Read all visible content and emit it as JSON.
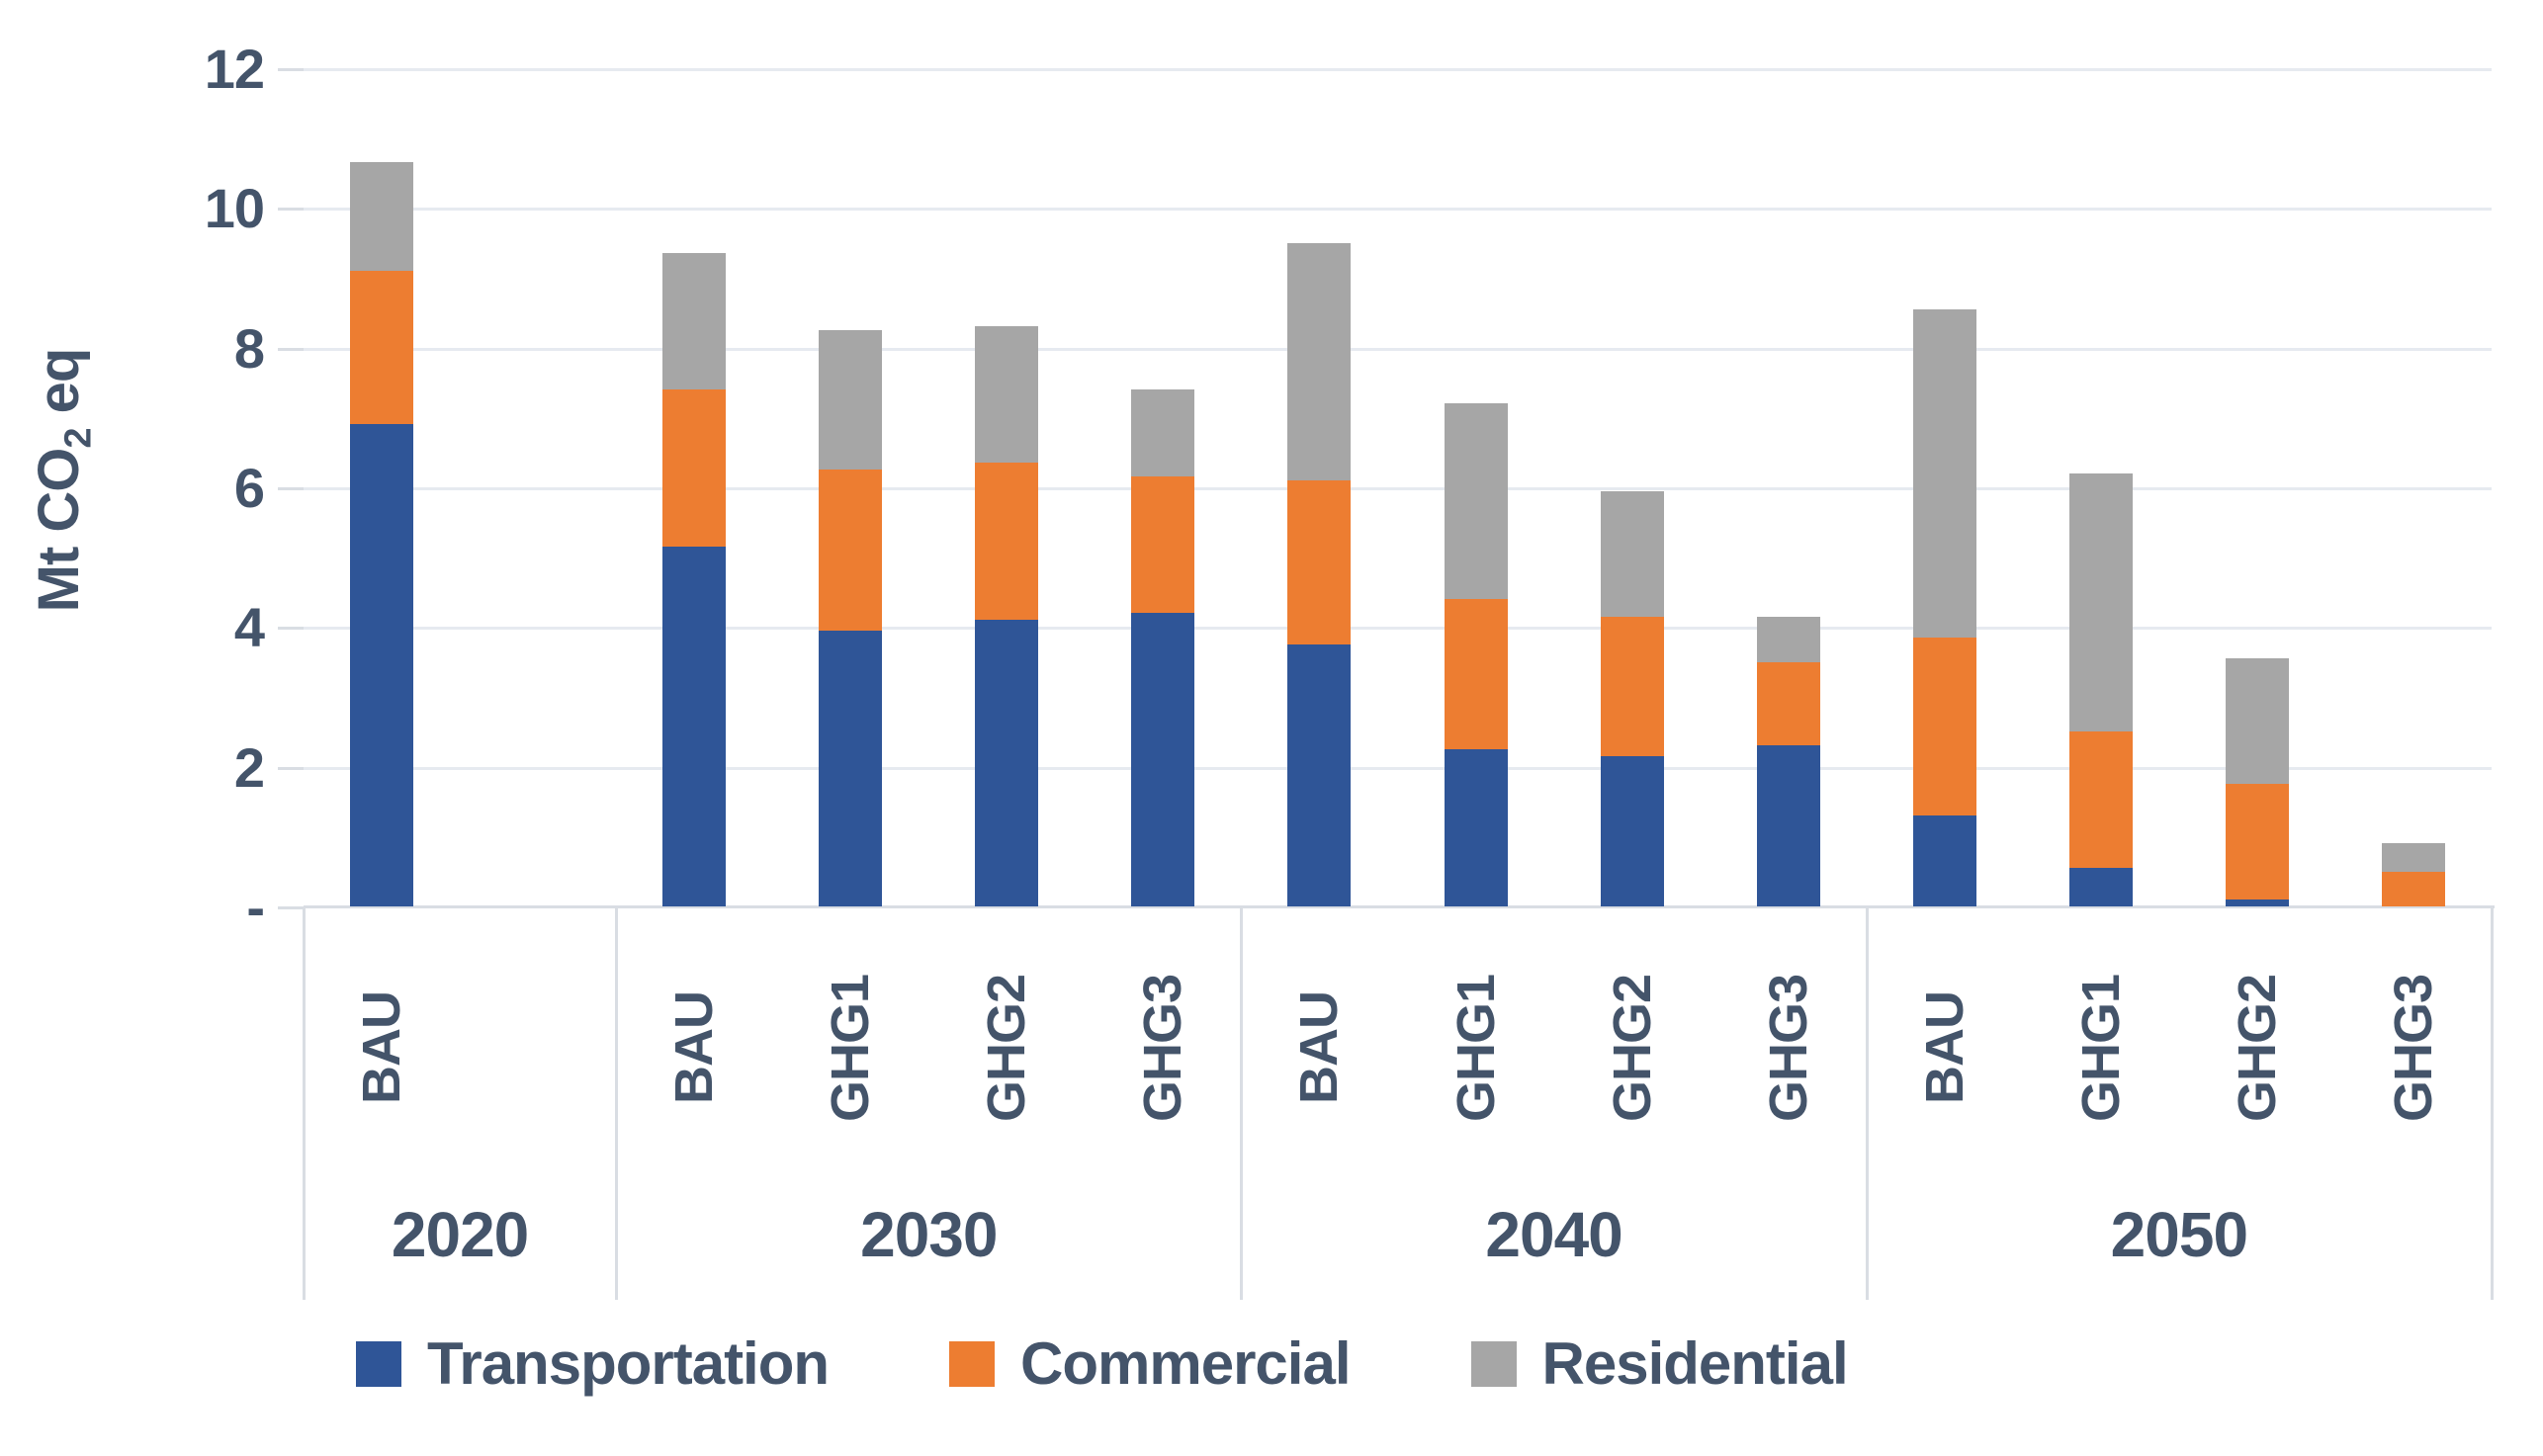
{
  "chart_data": {
    "type": "bar",
    "stacked": true,
    "title": "",
    "ylabel": "Mt CO2 eq",
    "ylabel_parts": {
      "prefix": "Mt CO",
      "sub": "2",
      "suffix": " eq"
    },
    "ylim": [
      0,
      12
    ],
    "grid": true,
    "legend_position": "bottom",
    "y_ticks": [
      {
        "value": 12,
        "label": "12"
      },
      {
        "value": 10,
        "label": "10"
      },
      {
        "value": 8,
        "label": "8"
      },
      {
        "value": 6,
        "label": "6"
      },
      {
        "value": 4,
        "label": "4"
      },
      {
        "value": 2,
        "label": "2"
      },
      {
        "value": 0,
        "label": "-"
      }
    ],
    "series_names": [
      "Transportation",
      "Commercial",
      "Residential"
    ],
    "colors": {
      "Transportation": "#2F5597",
      "Commercial": "#ED7D31",
      "Residential": "#A6A6A6",
      "text": "#44546A",
      "gridline": "#E6EAF0",
      "axis_line": "#D9DDE3"
    },
    "total_slots": 14,
    "groups": [
      {
        "year": "2020",
        "start_slot": 0,
        "bars": [
          {
            "label": "BAU",
            "values": {
              "Transportation": 6.9,
              "Commercial": 2.2,
              "Residential": 1.55
            }
          }
        ]
      },
      {
        "year": "2030",
        "start_slot": 2,
        "bars": [
          {
            "label": "BAU",
            "values": {
              "Transportation": 5.15,
              "Commercial": 2.25,
              "Residential": 1.95
            }
          },
          {
            "label": "GHG1",
            "values": {
              "Transportation": 3.95,
              "Commercial": 2.3,
              "Residential": 2.0
            }
          },
          {
            "label": "GHG2",
            "values": {
              "Transportation": 4.1,
              "Commercial": 2.25,
              "Residential": 1.95
            }
          },
          {
            "label": "GHG3",
            "values": {
              "Transportation": 4.2,
              "Commercial": 1.95,
              "Residential": 1.25
            }
          }
        ]
      },
      {
        "year": "2040",
        "start_slot": 6,
        "bars": [
          {
            "label": "BAU",
            "values": {
              "Transportation": 3.75,
              "Commercial": 2.35,
              "Residential": 3.4
            }
          },
          {
            "label": "GHG1",
            "values": {
              "Transportation": 2.25,
              "Commercial": 2.15,
              "Residential": 2.8
            }
          },
          {
            "label": "GHG2",
            "values": {
              "Transportation": 2.15,
              "Commercial": 2.0,
              "Residential": 1.8
            }
          },
          {
            "label": "GHG3",
            "values": {
              "Transportation": 2.3,
              "Commercial": 1.2,
              "Residential": 0.65
            }
          }
        ]
      },
      {
        "year": "2050",
        "start_slot": 10,
        "bars": [
          {
            "label": "BAU",
            "values": {
              "Transportation": 1.3,
              "Commercial": 2.55,
              "Residential": 4.7
            }
          },
          {
            "label": "GHG1",
            "values": {
              "Transportation": 0.55,
              "Commercial": 1.95,
              "Residential": 3.7
            }
          },
          {
            "label": "GHG2",
            "values": {
              "Transportation": 0.1,
              "Commercial": 1.65,
              "Residential": 1.8
            }
          },
          {
            "label": "GHG3",
            "values": {
              "Transportation": 0.0,
              "Commercial": 0.5,
              "Residential": 0.4
            }
          }
        ]
      }
    ],
    "legend": [
      "Transportation",
      "Commercial",
      "Residential"
    ]
  }
}
